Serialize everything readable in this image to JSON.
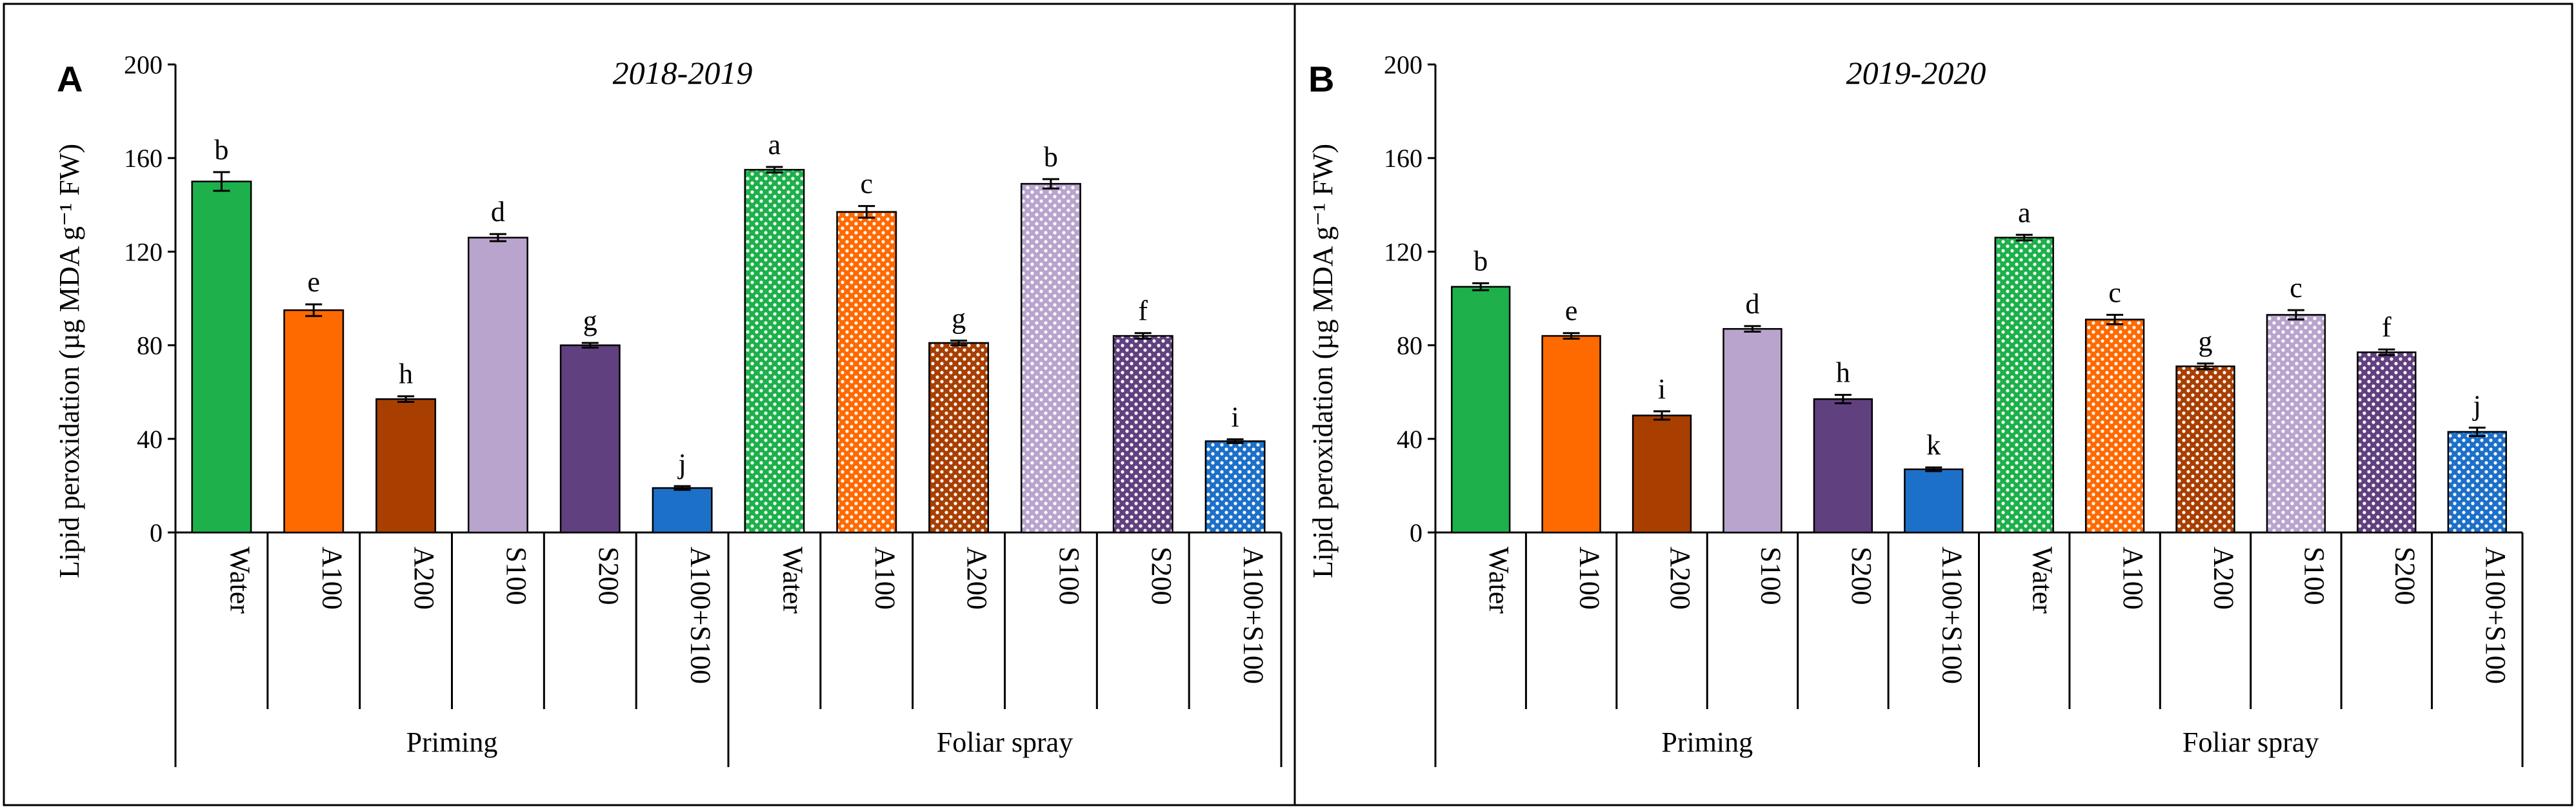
{
  "chart_data": [
    {
      "type": "bar",
      "panel": "A",
      "title": "2018-2019",
      "ylabel": "Lipid peroxidation (µg MDA g⁻¹ FW)",
      "ylim": [
        0,
        200
      ],
      "yticks": [
        "0",
        "40",
        "80",
        "120",
        "160",
        "200"
      ],
      "groups": [
        "Priming",
        "Foliar spray"
      ],
      "categories": [
        "Water",
        "A100",
        "A200",
        "S100",
        "S200",
        "A100+S100",
        "Water",
        "A100",
        "A200",
        "S100",
        "S200",
        "A100+S100"
      ],
      "values": [
        150,
        95,
        57,
        126,
        80,
        19,
        155,
        137,
        81,
        149,
        84,
        39
      ],
      "errors": [
        4,
        2.5,
        1.2,
        1.5,
        1,
        0.8,
        1.2,
        2.5,
        1,
        2,
        1.2,
        0.8
      ],
      "letters": [
        "b",
        "e",
        "h",
        "d",
        "g",
        "j",
        "a",
        "c",
        "g",
        "b",
        "f",
        "i"
      ]
    },
    {
      "type": "bar",
      "panel": "B",
      "title": "2019-2020",
      "ylabel": "Lipid peroxidation (µg MDA g⁻¹ FW)",
      "ylim": [
        0,
        200
      ],
      "yticks": [
        "0",
        "40",
        "80",
        "120",
        "160",
        "200"
      ],
      "groups": [
        "Priming",
        "Foliar spray"
      ],
      "categories": [
        "Water",
        "A100",
        "A200",
        "S100",
        "S200",
        "A100+S100",
        "Water",
        "A100",
        "A200",
        "S100",
        "S200",
        "A100+S100"
      ],
      "values": [
        105,
        84,
        50,
        87,
        57,
        27,
        126,
        91,
        71,
        93,
        77,
        43
      ],
      "errors": [
        1.5,
        1.2,
        1.8,
        1.2,
        1.8,
        0.8,
        1.2,
        2,
        1.2,
        2,
        1.2,
        1.8
      ],
      "letters": [
        "b",
        "e",
        "i",
        "d",
        "h",
        "k",
        "a",
        "c",
        "g",
        "c",
        "f",
        "j"
      ]
    }
  ],
  "colors": [
    "#1db04b",
    "#ff6a00",
    "#a83f00",
    "#b8a4cd",
    "#614080",
    "#1d70c8"
  ]
}
